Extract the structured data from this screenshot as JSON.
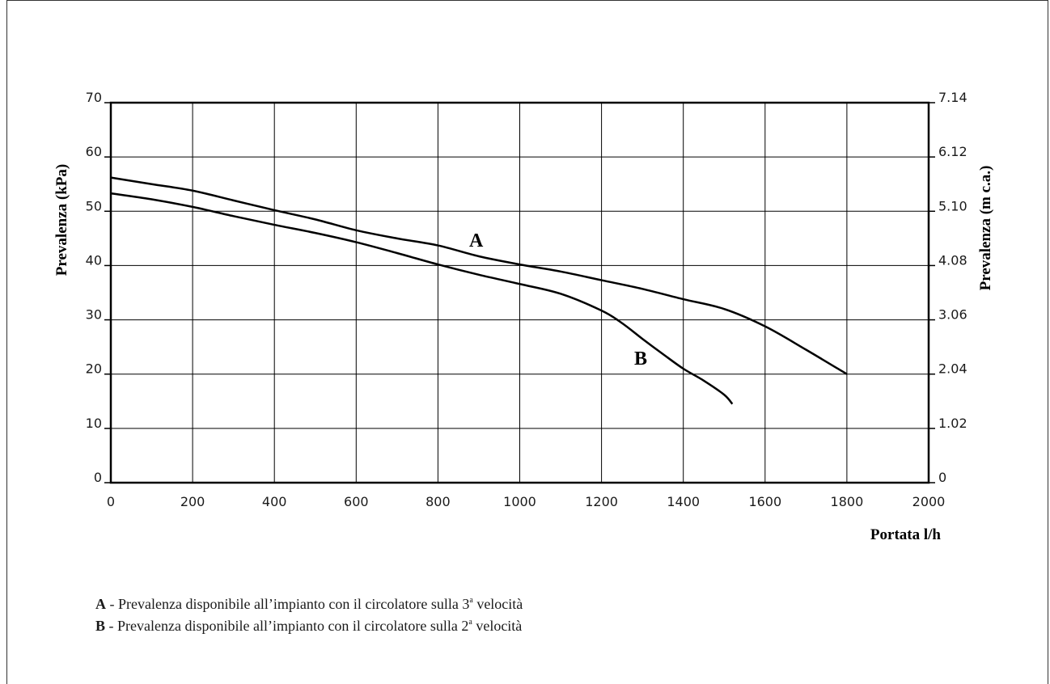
{
  "chart_data": {
    "type": "line",
    "xlabel": "Portata l/h",
    "ylabel": "Prevalenza (kPa)",
    "y2label": "Prevalenza (m c.a.)",
    "xlim": [
      0,
      2000
    ],
    "ylim": [
      0,
      70
    ],
    "x_ticks": [
      "0",
      "200",
      "400",
      "600",
      "800",
      "1000",
      "1200",
      "1400",
      "1600",
      "1800",
      "2000"
    ],
    "y_ticks": [
      "0",
      "10",
      "20",
      "30",
      "40",
      "50",
      "60",
      "70"
    ],
    "y2_ticks": [
      "0",
      "1.02",
      "2.04",
      "3.06",
      "4.08",
      "5.10",
      "6.12",
      "7.14"
    ],
    "grid": true,
    "series": [
      {
        "name": "A",
        "x": [
          0,
          100,
          200,
          300,
          400,
          500,
          600,
          700,
          800,
          900,
          1000,
          1100,
          1200,
          1300,
          1400,
          1500,
          1600,
          1700,
          1800
        ],
        "values": [
          56.2,
          55,
          53.8,
          52,
          50.2,
          48.5,
          46.5,
          45,
          43.7,
          41.7,
          40.2,
          38.9,
          37.3,
          35.7,
          33.8,
          32,
          28.8,
          24.5,
          20
        ]
      },
      {
        "name": "B",
        "x": [
          0,
          100,
          200,
          300,
          400,
          500,
          600,
          700,
          800,
          900,
          1000,
          1100,
          1200,
          1250,
          1300,
          1350,
          1400,
          1450,
          1500,
          1520
        ],
        "values": [
          53.3,
          52.2,
          50.8,
          49.1,
          47.5,
          46,
          44.3,
          42.3,
          40.2,
          38.3,
          36.6,
          34.8,
          31.7,
          29.4,
          26.5,
          23.7,
          21,
          18.8,
          16.2,
          14.5
        ]
      }
    ]
  },
  "legend": {
    "items": [
      {
        "key": "A",
        "text_before": " - Prevalenza disponibile all’impianto con il circolatore sulla 3",
        "sup": "a",
        "text_after": " velocità"
      },
      {
        "key": "B",
        "text_before": " - Prevalenza disponibile all’impianto con il circolatore sulla 2",
        "sup": "a",
        "text_after": " velocità"
      }
    ]
  }
}
